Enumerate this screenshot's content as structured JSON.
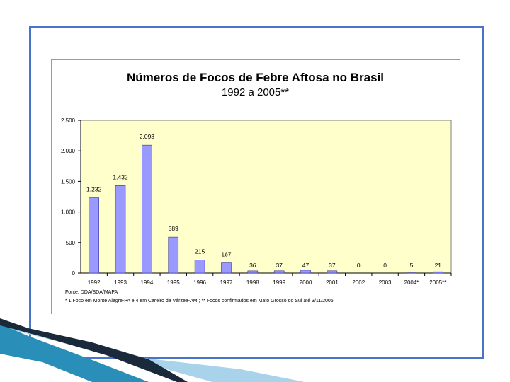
{
  "chart_data": {
    "type": "bar",
    "title": "Números de Focos de Febre Aftosa no Brasil",
    "subtitle": "1992 a 2005**",
    "categories": [
      "1992",
      "1993",
      "1994",
      "1995",
      "1996",
      "1997",
      "1998",
      "1999",
      "2000",
      "2001",
      "2002",
      "2003",
      "2004*",
      "2005**"
    ],
    "values": [
      1232,
      1432,
      2093,
      589,
      215,
      167,
      36,
      37,
      47,
      37,
      0,
      0,
      5,
      21
    ],
    "value_labels": [
      "1.232",
      "1.432",
      "2.093",
      "589",
      "215",
      "167",
      "36",
      "37",
      "47",
      "37",
      "0",
      "0",
      "5",
      "21"
    ],
    "ylim": [
      0,
      2500
    ],
    "yticks": [
      0,
      500,
      1000,
      1500,
      2000,
      2500
    ],
    "ytick_labels": [
      "0",
      "500",
      "1.000",
      "1.500",
      "2.000",
      "2.500"
    ],
    "xlabel": "",
    "ylabel": "",
    "grid": false,
    "plot_background": "#ffffcc",
    "bar_color": "#9999ff",
    "source": "Fonte: DDA/SDA/MAPA",
    "footnote": "* 1 Foco em Monte Alegre-PA e 4 em Careiro da Várzea-AM ; ** Focos confirmados em Mato Grosso do Sul até 3/11/2005"
  },
  "colors": {
    "frame": "#4a74c9",
    "decor_dark": "#1a2a3a",
    "decor_teal": "#2a8fb8",
    "decor_light": "#a9d3ea"
  }
}
